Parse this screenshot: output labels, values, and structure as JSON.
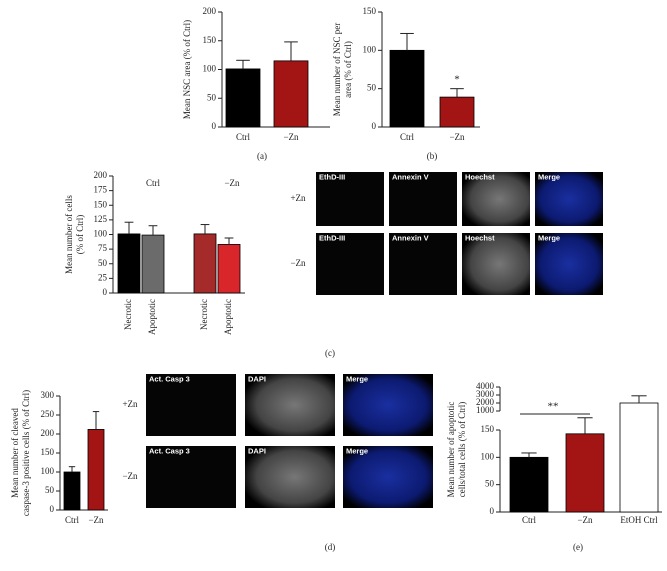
{
  "chart_data": [
    {
      "type": "bar",
      "panel": "(a)",
      "y_label": [
        "Mean NSC area (% of Ctrl)"
      ],
      "categories": [
        "Ctrl",
        "−Zn"
      ],
      "values": [
        101,
        115
      ],
      "errors": [
        15,
        33
      ],
      "colors": [
        "#000000",
        "#a31515"
      ],
      "ylim": [
        0,
        200
      ],
      "yticks": [
        0,
        50,
        100,
        150,
        200
      ]
    },
    {
      "type": "bar",
      "panel": "(b)",
      "y_label": [
        "Mean number of NSC per",
        "area (% of Ctrl)"
      ],
      "categories": [
        "Ctrl",
        "−Zn"
      ],
      "values": [
        100,
        39
      ],
      "errors": [
        22,
        11
      ],
      "colors": [
        "#000000",
        "#a31515"
      ],
      "ylim": [
        0,
        150
      ],
      "yticks": [
        0,
        50,
        100,
        150
      ],
      "annotations": [
        "*"
      ]
    },
    {
      "type": "bar",
      "panel": "(c)",
      "y_label": [
        "Mean number of cells",
        "(% of Ctrl)"
      ],
      "groups": [
        "Ctrl",
        "−Zn"
      ],
      "categories": [
        "Necrotic",
        "Apoptotic",
        "Necrotic",
        "Apoptotic"
      ],
      "values": [
        101,
        99,
        101,
        83
      ],
      "errors": [
        20,
        16,
        16,
        11
      ],
      "colors": [
        "#000000",
        "#6b6b6b",
        "#a52a2a",
        "#d9262a"
      ],
      "ylim": [
        0,
        200
      ],
      "yticks": [
        0,
        25,
        50,
        75,
        100,
        125,
        150,
        175,
        200
      ]
    },
    {
      "type": "bar",
      "panel": "(d)",
      "y_label": [
        "Mean number of cleaved",
        "caspase-3 positive cells (% of Ctrl)"
      ],
      "categories": [
        "Ctrl",
        "−Zn"
      ],
      "values": [
        100,
        212
      ],
      "errors": [
        14,
        47
      ],
      "colors": [
        "#000000",
        "#a31515"
      ],
      "ylim": [
        0,
        300
      ],
      "yticks": [
        0,
        50,
        100,
        150,
        200,
        250,
        300
      ]
    },
    {
      "type": "bar",
      "panel": "(e)",
      "y_label": [
        "Mean number of apoptotic",
        "cells/total cells (% of Ctrl)"
      ],
      "categories": [
        "Ctrl",
        "−Zn",
        "EtOH Ctrl"
      ],
      "values": [
        100,
        143,
        2000
      ],
      "errors": [
        8,
        12,
        900
      ],
      "colors": [
        "#000000",
        "#a31515",
        "#ffffff"
      ],
      "ylim": [
        0,
        150
      ],
      "yticks": [
        0,
        50,
        100,
        150
      ],
      "y_break": {
        "ylim": [
          1000,
          4000
        ],
        "yticks": [
          1000,
          2000,
          3000,
          4000
        ]
      },
      "annotations": [
        "**"
      ]
    }
  ],
  "micrographs": [
    {
      "rows": [
        "+Zn",
        "−Zn"
      ],
      "labels": [
        [
          "EthD-III",
          "Annexin V",
          "Hoechst",
          "Merge"
        ],
        [
          "EthD-III",
          "Annexin V",
          "Hoechst",
          "Merge"
        ]
      ]
    },
    {
      "rows": [
        "+Zn",
        "−Zn"
      ],
      "labels": [
        [
          "Act. Casp 3",
          "DAPI",
          "Merge"
        ],
        [
          "Act. Casp 3",
          "DAPI",
          "Merge"
        ]
      ]
    }
  ]
}
